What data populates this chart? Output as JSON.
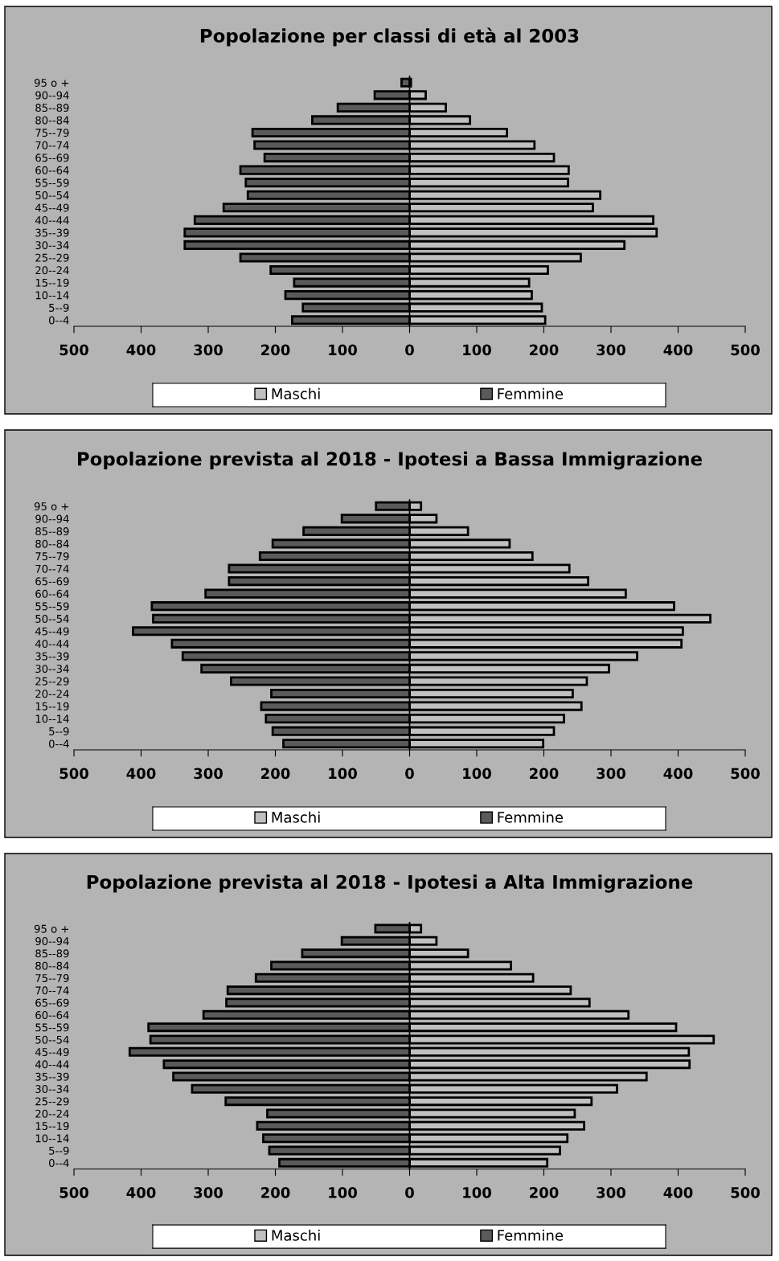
{
  "chart_data": [
    {
      "type": "bar",
      "orientation": "horizontal",
      "title": "Popolazione per classi di età al 2003",
      "stacked": true,
      "categories": [
        "95 o +",
        "90--94",
        "85--89",
        "80--84",
        "75--79",
        "70--74",
        "65--69",
        "60--64",
        "55--59",
        "50--54",
        "45--49",
        "40--44",
        "35--39",
        "30--34",
        "25--29",
        "20--24",
        "15--19",
        "10--14",
        "5--9",
        "0--4"
      ],
      "series": [
        {
          "name": "Maschi",
          "color": "#c0c0c0",
          "values": [
            2,
            24,
            54,
            90,
            145,
            186,
            215,
            237,
            236,
            284,
            273,
            363,
            368,
            320,
            255,
            206,
            178,
            182,
            197,
            202
          ]
        },
        {
          "name": "Femmine",
          "color": "#5a5a5a",
          "values": [
            -12,
            -52,
            -107,
            -145,
            -234,
            -231,
            -216,
            -252,
            -244,
            -241,
            -277,
            -320,
            -335,
            -335,
            -252,
            -207,
            -172,
            -185,
            -159,
            -175
          ]
        }
      ],
      "xlim": [
        -500,
        500
      ],
      "xticks": [
        {
          "value": -500,
          "label": "500"
        },
        {
          "value": -400,
          "label": "400"
        },
        {
          "value": -300,
          "label": "300"
        },
        {
          "value": -200,
          "label": "200"
        },
        {
          "value": -100,
          "label": "100"
        },
        0,
        100,
        200,
        300,
        400,
        500
      ],
      "legend": "bottom"
    },
    {
      "type": "bar",
      "orientation": "horizontal",
      "title": "Popolazione prevista al 2018 - Ipotesi a Bassa Immigrazione",
      "stacked": true,
      "categories": [
        "95 o +",
        "90--94",
        "85--89",
        "80--84",
        "75--79",
        "70--74",
        "65--69",
        "60--64",
        "55--59",
        "50--54",
        "45--49",
        "40--44",
        "35--39",
        "30--34",
        "25--29",
        "20--24",
        "15--19",
        "10--14",
        "5--9",
        "0--4"
      ],
      "series": [
        {
          "name": "Maschi",
          "color": "#c0c0c0",
          "values": [
            17,
            40,
            87,
            149,
            183,
            238,
            266,
            322,
            394,
            448,
            407,
            405,
            339,
            297,
            264,
            243,
            256,
            230,
            215,
            199
          ]
        },
        {
          "name": "Femmine",
          "color": "#5a5a5a",
          "values": [
            -50,
            -101,
            -158,
            -204,
            -223,
            -269,
            -269,
            -304,
            -384,
            -382,
            -412,
            -354,
            -338,
            -310,
            -266,
            -206,
            -221,
            -214,
            -204,
            -188
          ]
        }
      ],
      "xlim": [
        -500,
        500
      ],
      "xticks": [
        {
          "value": -500,
          "label": "500"
        },
        {
          "value": -400,
          "label": "400"
        },
        {
          "value": -300,
          "label": "300"
        },
        {
          "value": -200,
          "label": "200"
        },
        {
          "value": -100,
          "label": "100"
        },
        0,
        100,
        200,
        300,
        400,
        500
      ],
      "legend": "bottom"
    },
    {
      "type": "bar",
      "orientation": "horizontal",
      "title": "Popolazione prevista al 2018 - Ipotesi a Alta Immigrazione",
      "stacked": true,
      "categories": [
        "95 o +",
        "90--94",
        "85--89",
        "80--84",
        "75--79",
        "70--74",
        "65--69",
        "60--64",
        "55--59",
        "50--54",
        "45--49",
        "40--44",
        "35--39",
        "30--34",
        "25--29",
        "20--24",
        "15--19",
        "10--14",
        "5--9",
        "0--4"
      ],
      "series": [
        {
          "name": "Maschi",
          "color": "#c0c0c0",
          "values": [
            17,
            40,
            87,
            151,
            184,
            240,
            268,
            326,
            397,
            453,
            416,
            417,
            353,
            309,
            271,
            246,
            260,
            235,
            224,
            205
          ]
        },
        {
          "name": "Femmine",
          "color": "#5a5a5a",
          "values": [
            -51,
            -101,
            -160,
            -206,
            -229,
            -271,
            -273,
            -307,
            -389,
            -386,
            -417,
            -366,
            -352,
            -324,
            -274,
            -212,
            -227,
            -218,
            -209,
            -194
          ]
        }
      ],
      "xlim": [
        -500,
        500
      ],
      "xticks": [
        {
          "value": -500,
          "label": "500"
        },
        {
          "value": -400,
          "label": "400"
        },
        {
          "value": -300,
          "label": "300"
        },
        {
          "value": -200,
          "label": "200"
        },
        {
          "value": -100,
          "label": "100"
        },
        0,
        100,
        200,
        300,
        400,
        500
      ],
      "legend": "bottom"
    }
  ]
}
